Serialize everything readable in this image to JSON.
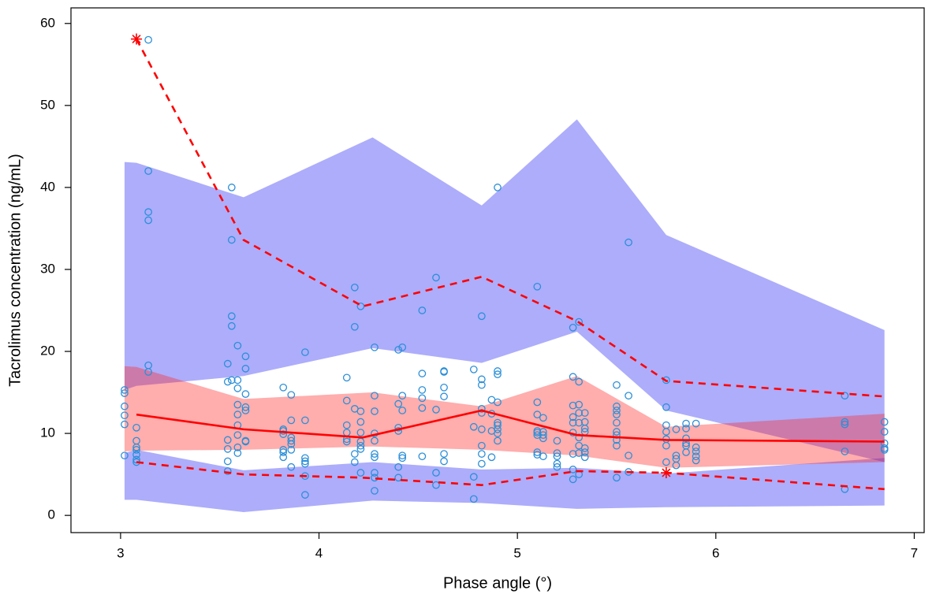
{
  "chart_data": {
    "type": "vpc",
    "x_label": "Phase angle (°)",
    "y_label": "Tacrolimus concentration (ng/mL)",
    "xlim": [
      2.75,
      7.05
    ],
    "ylim": [
      -2.1,
      61.9
    ],
    "xticks": [
      3,
      4,
      5,
      6,
      7
    ],
    "yticks": [
      0,
      10,
      20,
      30,
      40,
      50,
      60
    ],
    "band_x": [
      3.02,
      3.08,
      3.62,
      4.27,
      4.82,
      5.3,
      5.75,
      6.85
    ],
    "bands": [
      {
        "color": "rgba(40,40,245,0.38)",
        "upper": [
          43.1,
          43.0,
          38.8,
          46.1,
          37.8,
          48.3,
          34.2,
          22.6
        ],
        "lower": [
          15.3,
          15.8,
          17.0,
          20.4,
          18.6,
          22.4,
          12.8,
          6.5
        ]
      },
      {
        "color": "rgba(40,40,245,0.38)",
        "upper": [
          7.6,
          8.0,
          5.5,
          6.5,
          5.6,
          5.8,
          5.1,
          7.0
        ],
        "lower": [
          1.9,
          1.9,
          0.4,
          1.8,
          1.5,
          0.8,
          1.0,
          1.2
        ]
      },
      {
        "color": "rgba(255,40,40,0.38)",
        "upper": [
          18.2,
          18.1,
          14.2,
          15.0,
          13.3,
          17.0,
          10.8,
          12.4
        ],
        "lower": [
          7.8,
          7.9,
          8.0,
          8.4,
          8.0,
          7.3,
          5.8,
          6.5
        ]
      }
    ],
    "line_x": [
      3.08,
      3.62,
      4.22,
      4.82,
      5.3,
      5.75,
      6.85
    ],
    "lines": [
      {
        "color": "#ff0000",
        "dashed": false,
        "values": [
          12.3,
          10.5,
          9.5,
          12.8,
          9.8,
          9.2,
          9.0
        ]
      },
      {
        "color": "#ff0000",
        "dashed": true,
        "values": [
          58.1,
          33.6,
          25.5,
          29.1,
          23.7,
          16.4,
          14.5
        ]
      },
      {
        "color": "#ff0000",
        "dashed": true,
        "values": [
          6.5,
          5.0,
          4.6,
          3.7,
          5.4,
          5.2,
          3.2
        ]
      }
    ],
    "outliers": {
      "color": "#ff0000",
      "x": [
        3.08,
        5.75
      ],
      "values": [
        58.1,
        5.2
      ]
    },
    "point_color": "#2b8fd8",
    "observations": [
      {
        "x": 3.02,
        "values": [
          15.3,
          14.9,
          13.3,
          12.2,
          11.1,
          7.3
        ]
      },
      {
        "x": 3.08,
        "values": [
          10.7,
          9.1,
          8.3,
          8.0,
          7.4,
          6.8,
          6.5
        ]
      },
      {
        "x": 3.14,
        "values": [
          58.0,
          42.0,
          37.0,
          36.0,
          18.3,
          17.5
        ]
      },
      {
        "x": 3.54,
        "values": [
          18.5,
          16.3,
          9.2,
          8.1,
          6.6,
          5.4
        ]
      },
      {
        "x": 3.56,
        "values": [
          40.0,
          33.6,
          24.3,
          23.1,
          16.5
        ]
      },
      {
        "x": 3.59,
        "values": [
          16.5,
          15.5,
          13.5,
          12.3,
          11.0,
          9.8,
          8.3,
          7.6,
          20.7
        ]
      },
      {
        "x": 3.63,
        "values": [
          19.4,
          17.9,
          14.8,
          13.2,
          12.8,
          9.1,
          9.0
        ]
      },
      {
        "x": 3.82,
        "values": [
          15.6,
          10.5,
          10.3,
          9.9,
          8.0,
          7.7,
          7.1
        ]
      },
      {
        "x": 3.86,
        "values": [
          14.7,
          11.6,
          9.5,
          9.1,
          8.7,
          8.0,
          5.9
        ]
      },
      {
        "x": 3.93,
        "values": [
          19.9,
          11.6,
          7.0,
          6.6,
          6.3,
          4.8,
          2.5
        ]
      },
      {
        "x": 4.14,
        "values": [
          16.8,
          14.0,
          11.0,
          10.1,
          9.3,
          9.0
        ]
      },
      {
        "x": 4.18,
        "values": [
          27.8,
          23.0,
          13.0,
          7.5,
          6.5
        ]
      },
      {
        "x": 4.21,
        "values": [
          25.5,
          12.7,
          11.4,
          10.1,
          9.0,
          8.5,
          8.1,
          5.2
        ]
      },
      {
        "x": 4.28,
        "values": [
          20.5,
          14.6,
          12.7,
          10.0,
          9.1,
          7.5,
          7.1,
          5.2,
          4.6,
          3.0
        ]
      },
      {
        "x": 4.4,
        "values": [
          20.2,
          13.6,
          10.7,
          10.3,
          5.9,
          4.6
        ]
      },
      {
        "x": 4.42,
        "values": [
          20.5,
          14.6,
          12.8,
          7.3,
          7.0
        ]
      },
      {
        "x": 4.52,
        "values": [
          25.0,
          17.3,
          15.3,
          14.3,
          13.1,
          7.2
        ]
      },
      {
        "x": 4.59,
        "values": [
          29.0,
          12.9,
          5.2,
          3.7
        ]
      },
      {
        "x": 4.63,
        "values": [
          17.6,
          17.5,
          15.6,
          14.5,
          7.5,
          6.6
        ]
      },
      {
        "x": 4.78,
        "values": [
          17.8,
          10.8,
          4.7,
          2.0
        ]
      },
      {
        "x": 4.82,
        "values": [
          24.3,
          16.6,
          15.9,
          13.0,
          12.5,
          10.5,
          8.5,
          7.5,
          6.3
        ]
      },
      {
        "x": 4.87,
        "values": [
          14.1,
          12.4,
          10.3,
          7.1
        ]
      },
      {
        "x": 4.9,
        "values": [
          40.0,
          17.6,
          17.2,
          13.8,
          11.3,
          11.0,
          10.5,
          10.0,
          9.1
        ]
      },
      {
        "x": 5.1,
        "values": [
          27.9,
          13.8,
          12.3,
          10.3,
          10.1,
          9.8,
          7.7,
          7.4
        ]
      },
      {
        "x": 5.13,
        "values": [
          11.9,
          10.2,
          9.8,
          9.4,
          7.2
        ]
      },
      {
        "x": 5.2,
        "values": [
          9.1,
          7.6,
          7.2,
          6.3,
          5.9
        ]
      },
      {
        "x": 5.28,
        "values": [
          22.9,
          16.9,
          13.4,
          12.0,
          11.3,
          10.1,
          7.5,
          5.6,
          4.4
        ]
      },
      {
        "x": 5.31,
        "values": [
          23.6,
          16.3,
          13.5,
          12.5,
          11.3,
          9.5,
          8.5,
          7.6,
          5.0
        ]
      },
      {
        "x": 5.34,
        "values": [
          12.5,
          11.4,
          10.6,
          10.2,
          8.2,
          7.7,
          7.1
        ]
      },
      {
        "x": 5.5,
        "values": [
          15.9,
          13.3,
          12.8,
          12.3,
          11.3,
          10.2,
          9.8,
          9.2,
          8.5,
          4.6
        ]
      },
      {
        "x": 5.56,
        "values": [
          33.3,
          14.6,
          7.3,
          5.3
        ]
      },
      {
        "x": 5.75,
        "values": [
          16.5,
          13.2,
          11.0,
          10.2,
          9.3,
          8.5,
          6.5
        ]
      },
      {
        "x": 5.8,
        "values": [
          10.5,
          7.3,
          6.9,
          6.1
        ]
      },
      {
        "x": 5.85,
        "values": [
          11.2,
          10.6,
          9.4,
          8.8,
          8.5,
          7.7
        ]
      },
      {
        "x": 5.9,
        "values": [
          11.2,
          8.3,
          7.8,
          7.2,
          6.7
        ]
      },
      {
        "x": 6.65,
        "values": [
          14.6,
          11.4,
          11.1,
          7.8,
          3.2
        ]
      },
      {
        "x": 6.85,
        "values": [
          11.4,
          10.2,
          8.8,
          8.2,
          8.0
        ]
      }
    ]
  }
}
